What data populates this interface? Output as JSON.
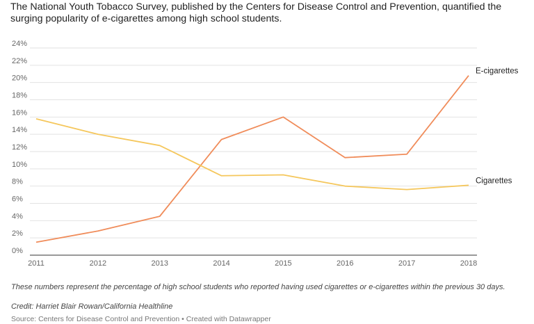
{
  "header": {
    "title": "The National Youth Tobacco Survey, published by the Centers for Disease Control and Prevention, quantified the surging popularity of e-cigarettes among high school students."
  },
  "footer": {
    "notes": "These numbers represent the percentage of high school students who reported having used cigarettes or e-cigarettes within the previous 30 days.",
    "credit": "Credit: Harriet Blair Rowan/California Healthline",
    "source": "Source: Centers for Disease Control and Prevention • Created with Datawrapper"
  },
  "chart_data": {
    "type": "line",
    "x": [
      2011,
      2012,
      2013,
      2014,
      2015,
      2016,
      2017,
      2018
    ],
    "x_tick_labels": [
      "2011",
      "2012",
      "2013",
      "2014",
      "2015",
      "2016",
      "2017",
      "2018"
    ],
    "ylim": [
      0,
      24
    ],
    "y_ticks": [
      0,
      2,
      4,
      6,
      8,
      10,
      12,
      14,
      16,
      18,
      20,
      22,
      24
    ],
    "y_tick_labels": [
      "0%",
      "2%",
      "4%",
      "6%",
      "8%",
      "10%",
      "12%",
      "14%",
      "16%",
      "18%",
      "20%",
      "22%",
      "24%"
    ],
    "grid": true,
    "series": [
      {
        "name": "E-cigarettes",
        "color": "#f08c5a",
        "values": [
          1.5,
          2.8,
          4.5,
          13.4,
          16.0,
          11.3,
          11.7,
          20.8
        ]
      },
      {
        "name": "Cigarettes",
        "color": "#f5c75c",
        "values": [
          15.8,
          14.0,
          12.7,
          9.2,
          9.3,
          8.0,
          7.6,
          8.1
        ]
      }
    ]
  }
}
